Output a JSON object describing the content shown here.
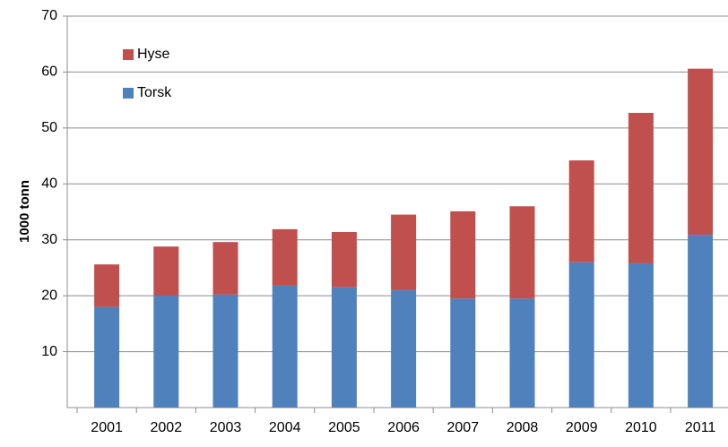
{
  "chart_data": {
    "type": "stacked_bar",
    "y_label": "1000 tonn",
    "categories": [
      "2001",
      "2002",
      "2003",
      "2004",
      "2005",
      "2006",
      "2007",
      "2008",
      "2009",
      "2010",
      "2011"
    ],
    "series": [
      {
        "name": "Torsk",
        "color": "#4f81bd",
        "values": [
          18,
          20,
          20.2,
          21.8,
          21.5,
          21,
          19.5,
          19.5,
          26,
          25.8,
          30.9
        ]
      },
      {
        "name": "Hyse",
        "color": "#c0504d",
        "values": [
          7.6,
          8.8,
          9.4,
          10.1,
          9.9,
          13.5,
          15.6,
          16.5,
          18.2,
          26.9,
          29.7
        ]
      }
    ],
    "ylim": [
      0,
      70
    ],
    "yticks": [
      10,
      20,
      30,
      40,
      50,
      60,
      70
    ],
    "grid": true,
    "legend": "upper left"
  }
}
